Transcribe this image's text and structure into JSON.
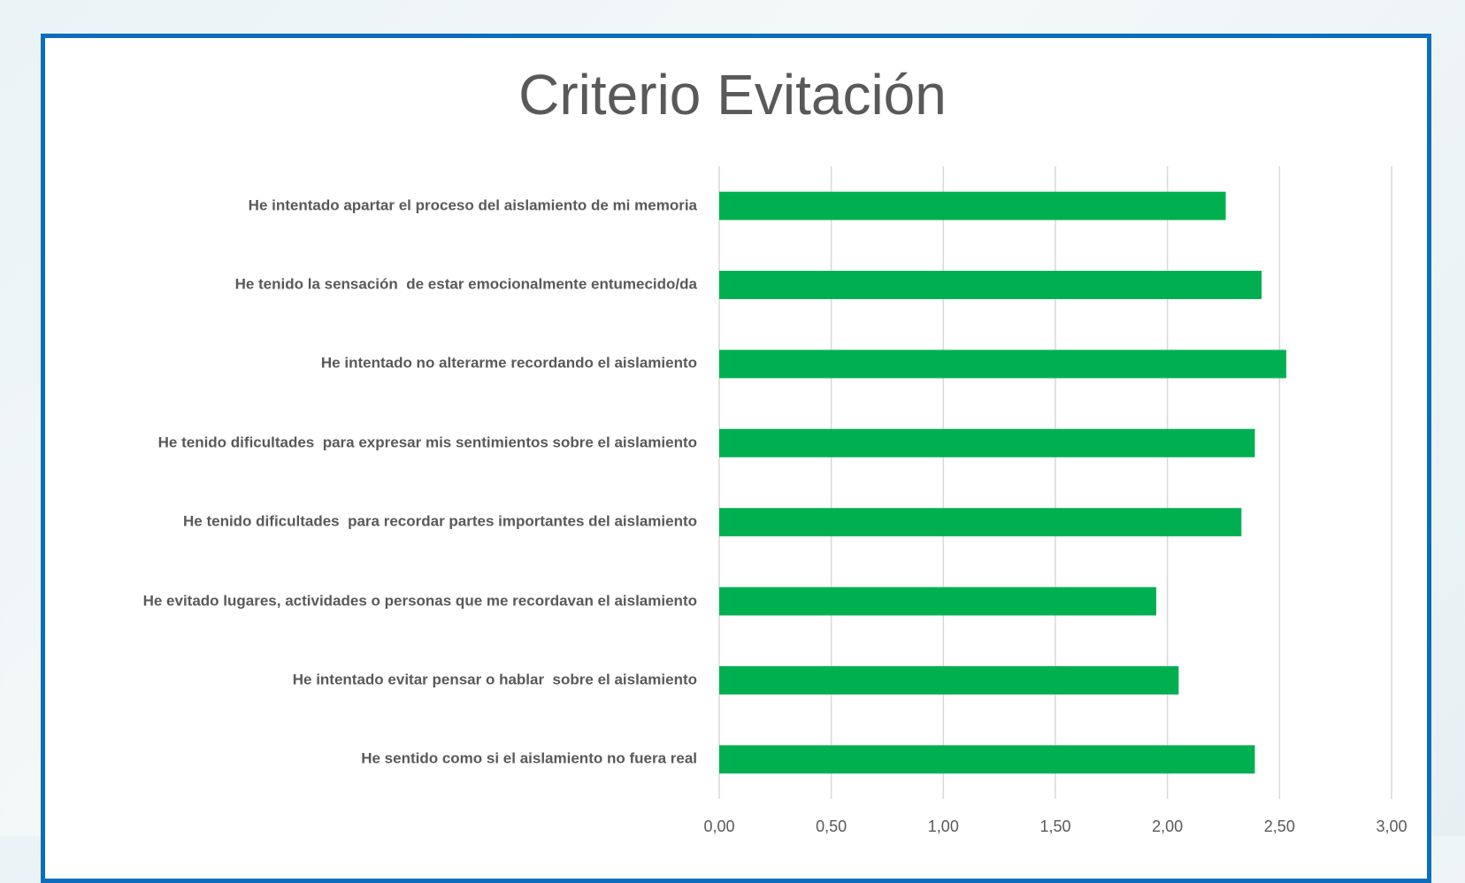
{
  "chart_data": {
    "type": "bar",
    "orientation": "horizontal",
    "title": "Criterio Evitación",
    "categories": [
      "He intentado apartar el proceso del aislamiento de mi memoria",
      "He tenido la sensación  de estar emocionalmente entumecido/da",
      "He intentado no alterarme recordando el aislamiento",
      "He tenido dificultades  para expresar mis sentimientos sobre el aislamiento",
      "He tenido dificultades  para recordar partes importantes del aislamiento",
      "He evitado lugares, actividades o personas que me recordavan el aislamiento",
      "He intentado evitar pensar o hablar  sobre el aislamiento",
      "He sentido como si el aislamiento no fuera real"
    ],
    "values": [
      2.26,
      2.42,
      2.53,
      2.39,
      2.33,
      1.95,
      2.05,
      2.39
    ],
    "color": "#00b050",
    "xlim": [
      0,
      3
    ],
    "xticks": [
      {
        "value": 0,
        "label": "0,00"
      },
      {
        "value": 0.5,
        "label": "0,50"
      },
      {
        "value": 1,
        "label": "1,00"
      },
      {
        "value": 1.5,
        "label": "1,50"
      },
      {
        "value": 2,
        "label": "2,00"
      },
      {
        "value": 2.5,
        "label": "2,50"
      },
      {
        "value": 3,
        "label": "3,00"
      }
    ],
    "grid": true
  }
}
